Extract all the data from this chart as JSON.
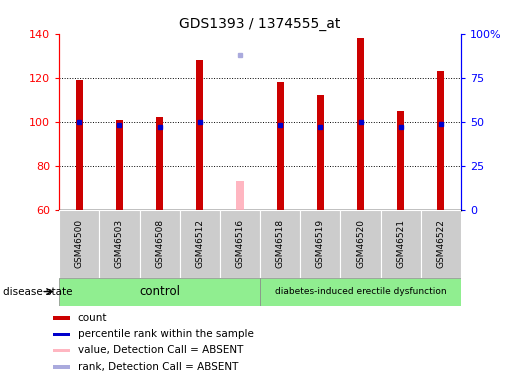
{
  "title": "GDS1393 / 1374555_at",
  "samples": [
    "GSM46500",
    "GSM46503",
    "GSM46508",
    "GSM46512",
    "GSM46516",
    "GSM46518",
    "GSM46519",
    "GSM46520",
    "GSM46521",
    "GSM46522"
  ],
  "counts": [
    119,
    101,
    102,
    128,
    73,
    118,
    112,
    138,
    105,
    123
  ],
  "percentile_ranks": [
    50,
    48,
    47,
    50,
    null,
    48,
    47,
    50,
    47,
    49
  ],
  "absent_flags": [
    false,
    false,
    false,
    false,
    true,
    false,
    false,
    false,
    false,
    false
  ],
  "absent_rank": 88,
  "ylim_left": [
    60,
    140
  ],
  "ylim_right": [
    0,
    100
  ],
  "yticks_left": [
    60,
    80,
    100,
    120,
    140
  ],
  "yticks_right": [
    0,
    25,
    50,
    75,
    100
  ],
  "ytick_labels_right": [
    "0",
    "25",
    "50",
    "75",
    "100%"
  ],
  "control_samples": [
    "GSM46500",
    "GSM46503",
    "GSM46508",
    "GSM46512",
    "GSM46516"
  ],
  "disease_samples": [
    "GSM46518",
    "GSM46519",
    "GSM46520",
    "GSM46521",
    "GSM46522"
  ],
  "control_label": "control",
  "disease_label": "diabetes-induced erectile dysfunction",
  "bar_color_normal": "#CC0000",
  "bar_color_absent": "#FFB6C1",
  "rank_color_normal": "#0000CC",
  "rank_color_absent": "#AAAADD",
  "label_bg": "#CCCCCC",
  "control_bg": "#90EE90",
  "disease_bg": "#90EE90",
  "bar_width": 0.18,
  "legend_items": [
    {
      "color": "#CC0000",
      "label": "count"
    },
    {
      "color": "#0000CC",
      "label": "percentile rank within the sample"
    },
    {
      "color": "#FFB6C1",
      "label": "value, Detection Call = ABSENT"
    },
    {
      "color": "#AAAADD",
      "label": "rank, Detection Call = ABSENT"
    }
  ]
}
